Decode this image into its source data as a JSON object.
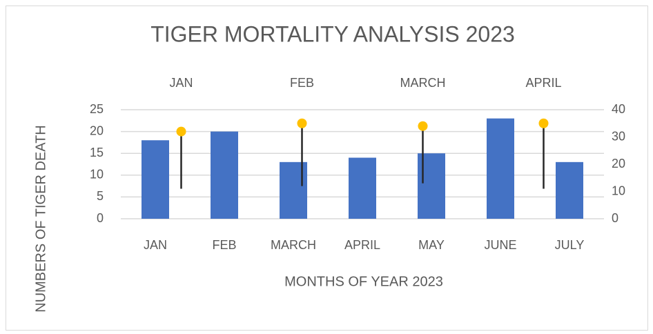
{
  "chart_data": {
    "type": "combo",
    "title": "TIGER MORTALITY ANALYSIS 2023",
    "x_label": "MONTHS OF YEAR 2023",
    "y_label": "NUMBERS OF TIGER DEATH",
    "categories": [
      "JAN",
      "FEB",
      "MARCH",
      "APRIL",
      "MAY",
      "JUNE",
      "JULY"
    ],
    "ylim": [
      0,
      25
    ],
    "yticks": [
      0,
      5,
      10,
      15,
      20,
      25
    ],
    "y2lim": [
      0,
      40
    ],
    "y2ticks": [
      0,
      10,
      20,
      30,
      40
    ],
    "grid": true,
    "series": [
      {
        "type": "bar",
        "color": "#4472c4",
        "values": [
          18,
          20,
          13,
          14,
          15,
          23,
          13
        ]
      },
      {
        "type": "scatter",
        "axis": "y2",
        "color": "#ffc000",
        "error_color": "#262626",
        "categories": [
          "JAN",
          "FEB",
          "MARCH",
          "APRIL"
        ],
        "values": [
          32,
          35,
          34,
          35
        ],
        "errors_minus": [
          21,
          23,
          21,
          24
        ]
      }
    ]
  }
}
